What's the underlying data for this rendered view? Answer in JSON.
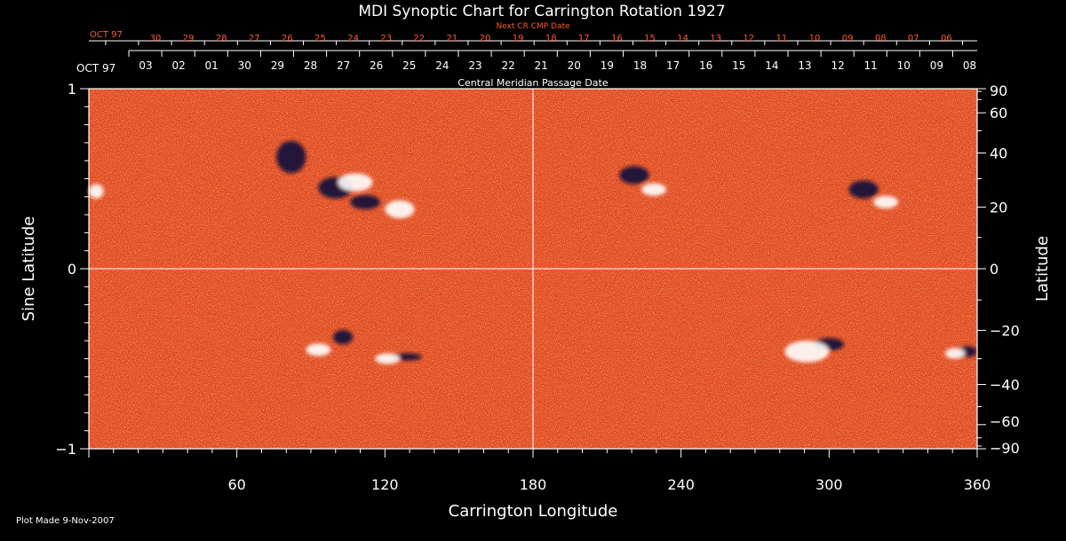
{
  "chart_data": {
    "type": "heatmap",
    "title": "MDI Synoptic Chart for Carrington Rotation 1927",
    "xlabel": "Carrington Longitude",
    "ylabel_left": "Sine Latitude",
    "ylabel_right": "Latitude",
    "xlim": [
      0,
      360
    ],
    "ylim": [
      -1,
      1
    ],
    "x_ticks": [
      60,
      120,
      180,
      240,
      300,
      360
    ],
    "y_ticks_left": [
      {
        "value": 1,
        "label": "1"
      },
      {
        "value": 0,
        "label": "0"
      },
      {
        "value": -1,
        "label": "−1"
      }
    ],
    "y_ticks_right": [
      {
        "deg": 90,
        "label": "90"
      },
      {
        "deg": 60,
        "label": "60"
      },
      {
        "deg": 40,
        "label": "40"
      },
      {
        "deg": 20,
        "label": "20"
      },
      {
        "deg": 0,
        "label": "0"
      },
      {
        "deg": -20,
        "label": "−20"
      },
      {
        "deg": -40,
        "label": "−40"
      },
      {
        "deg": -60,
        "label": "−60"
      },
      {
        "deg": -90,
        "label": "−90"
      }
    ],
    "colors": {
      "background": "#000000",
      "field": "#e8431a",
      "positive": "#ffffff",
      "negative": "#0a0a3a",
      "next_axis": "#ff5a2a"
    },
    "grid": "lines at longitude 180 and sine latitude 0",
    "cmp_axis": {
      "label": "Central Meridian Passage Date",
      "start_label": "OCT 97",
      "dates": [
        "03",
        "02",
        "01",
        "30",
        "29",
        "28",
        "27",
        "26",
        "25",
        "24",
        "23",
        "22",
        "21",
        "20",
        "19",
        "18",
        "17",
        "16",
        "15",
        "14",
        "13",
        "12",
        "11",
        "10",
        "09",
        "08"
      ]
    },
    "next_cmp_axis": {
      "label": "Next CR CMP Date",
      "start_label": "OCT 97",
      "dates": [
        "30",
        "29",
        "28",
        "27",
        "26",
        "25",
        "24",
        "23",
        "22",
        "21",
        "20",
        "19",
        "18",
        "17",
        "16",
        "15",
        "14",
        "13",
        "12",
        "11",
        "10",
        "09",
        "08",
        "07",
        "06"
      ]
    },
    "features": [
      {
        "polarity": "negative",
        "lon": 82,
        "sinlat": 0.62,
        "rx": 6,
        "ry": 0.09
      },
      {
        "polarity": "negative",
        "lon": 100,
        "sinlat": 0.45,
        "rx": 7,
        "ry": 0.06
      },
      {
        "polarity": "positive",
        "lon": 108,
        "sinlat": 0.48,
        "rx": 7,
        "ry": 0.05
      },
      {
        "polarity": "positive",
        "lon": 126,
        "sinlat": 0.33,
        "rx": 6,
        "ry": 0.05
      },
      {
        "polarity": "negative",
        "lon": 112,
        "sinlat": 0.37,
        "rx": 6,
        "ry": 0.04
      },
      {
        "polarity": "positive",
        "lon": 3,
        "sinlat": 0.43,
        "rx": 3,
        "ry": 0.04
      },
      {
        "polarity": "negative",
        "lon": 221,
        "sinlat": 0.52,
        "rx": 6,
        "ry": 0.05
      },
      {
        "polarity": "positive",
        "lon": 229,
        "sinlat": 0.44,
        "rx": 5,
        "ry": 0.035
      },
      {
        "polarity": "negative",
        "lon": 314,
        "sinlat": 0.44,
        "rx": 6,
        "ry": 0.05
      },
      {
        "polarity": "positive",
        "lon": 323,
        "sinlat": 0.37,
        "rx": 5,
        "ry": 0.035
      },
      {
        "polarity": "negative",
        "lon": 103,
        "sinlat": -0.38,
        "rx": 4,
        "ry": 0.04
      },
      {
        "polarity": "positive",
        "lon": 93,
        "sinlat": -0.45,
        "rx": 5,
        "ry": 0.035
      },
      {
        "polarity": "negative",
        "lon": 129,
        "sinlat": -0.49,
        "rx": 6,
        "ry": 0.02
      },
      {
        "polarity": "positive",
        "lon": 121,
        "sinlat": -0.5,
        "rx": 5,
        "ry": 0.03
      },
      {
        "polarity": "negative",
        "lon": 300,
        "sinlat": -0.42,
        "rx": 6,
        "ry": 0.035
      },
      {
        "polarity": "positive",
        "lon": 291,
        "sinlat": -0.46,
        "rx": 9,
        "ry": 0.06
      },
      {
        "polarity": "negative",
        "lon": 356,
        "sinlat": -0.46,
        "rx": 4,
        "ry": 0.03
      },
      {
        "polarity": "positive",
        "lon": 351,
        "sinlat": -0.47,
        "rx": 4,
        "ry": 0.03
      }
    ]
  },
  "footer": {
    "plot_made": "Plot Made  9-Nov-2007"
  }
}
